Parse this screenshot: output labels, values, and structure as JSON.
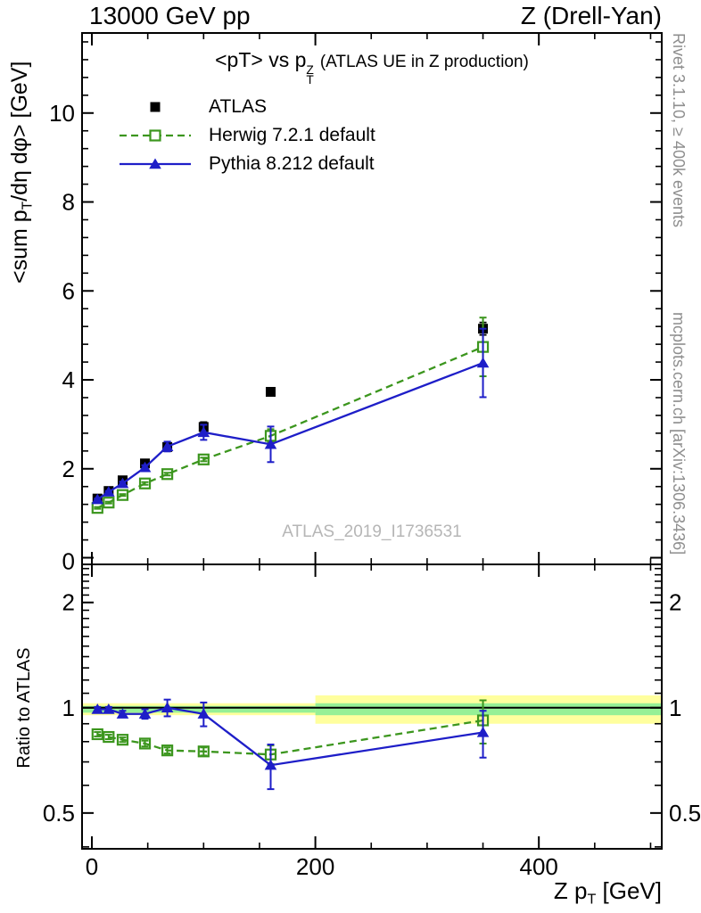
{
  "header": {
    "left": "13000 GeV pp",
    "right": "Z (Drell-Yan)"
  },
  "panel_title": {
    "prefix": "<pT> vs p",
    "sup": "Z",
    "sub": "T",
    "suffix": "(ATLAS UE in Z production)"
  },
  "axes": {
    "y_main": {
      "prefix": "<sum p",
      "sub": "T",
      "suffix": "/dη dφ> [GeV]"
    },
    "y_ratio_label": "Ratio to ATLAS",
    "x": {
      "prefix": "Z p",
      "sub": "T",
      "suffix": " [GeV]"
    }
  },
  "legend": [
    {
      "label": "ATLAS"
    },
    {
      "label": "Herwig 7.2.1 default"
    },
    {
      "label": "Pythia 8.212 default"
    }
  ],
  "side_text": {
    "top": "Rivet 3.1.10, ≥ 400k events",
    "bottom": "mcplots.cern.ch [arXiv:1306.3436]"
  },
  "watermark": "ATLAS_2019_I1736531",
  "colors": {
    "atlas": "#000000",
    "herwig": "#3c961e",
    "pythia": "#1e1ec8",
    "band_yellow": "#ffff9e",
    "band_green": "#96f096",
    "frame": "#000000"
  },
  "chart_data": [
    {
      "type": "line",
      "panel": "main",
      "title": "<pT> vs pT^Z (ATLAS UE in Z production)",
      "xlabel": "Z pT [GeV]",
      "ylabel": "<sum pT/deta dphi> [GeV]",
      "x": [
        5,
        15,
        27.5,
        47.5,
        67.5,
        100,
        160,
        350
      ],
      "xlim": [
        -8.8,
        510
      ],
      "ylim": [
        -0.15,
        11.8
      ],
      "xticks": [
        0,
        200,
        400
      ],
      "x_minor_step": 50,
      "yticks": [
        0,
        2,
        4,
        6,
        8,
        10
      ],
      "y_minor_step": 0.4,
      "series": [
        {
          "name": "ATLAS",
          "marker": "filled-square",
          "line": "none",
          "color_key": "atlas",
          "values": [
            1.33,
            1.5,
            1.74,
            2.12,
            2.49,
            2.94,
            3.73,
            5.15
          ],
          "errors": [
            0.03,
            0.03,
            0.03,
            0.04,
            0.05,
            0.11,
            0.05,
            0.14
          ]
        },
        {
          "name": "Herwig 7.2.1 default",
          "marker": "open-square",
          "line": "dashed",
          "color_key": "herwig",
          "values": [
            1.12,
            1.24,
            1.41,
            1.67,
            1.88,
            2.21,
            2.74,
            4.74
          ],
          "errors": [
            0.02,
            0.02,
            0.02,
            0.03,
            0.03,
            0.04,
            0.15,
            0.66
          ]
        },
        {
          "name": "Pythia 8.212 default",
          "marker": "filled-triangle",
          "line": "solid",
          "color_key": "pythia",
          "values": [
            1.31,
            1.48,
            1.67,
            2.03,
            2.5,
            2.82,
            2.55,
            4.38
          ],
          "errors": [
            0.02,
            0.02,
            0.04,
            0.05,
            0.11,
            0.17,
            0.4,
            0.77
          ]
        }
      ]
    },
    {
      "type": "line",
      "panel": "ratio",
      "ylabel": "Ratio to ATLAS",
      "ylog": true,
      "x": [
        5,
        15,
        27.5,
        47.5,
        67.5,
        100,
        160,
        350
      ],
      "xlim": [
        -8.8,
        510
      ],
      "ylim": [
        0.395,
        2.57
      ],
      "yticks": [
        0.5,
        1,
        2
      ],
      "ref_line": 1,
      "bands": [
        {
          "x0": -8.8,
          "x1": 200,
          "lo": 0.952,
          "hi": 1.03,
          "color_key": "band_yellow"
        },
        {
          "x0": -8.8,
          "x1": 200,
          "lo": 0.968,
          "hi": 1.012,
          "color_key": "band_green"
        },
        {
          "x0": 200,
          "x1": 510,
          "lo": 0.9,
          "hi": 1.085,
          "color_key": "band_yellow"
        },
        {
          "x0": 200,
          "x1": 510,
          "lo": 0.952,
          "hi": 1.03,
          "color_key": "band_green"
        }
      ],
      "series": [
        {
          "name": "Herwig 7.2.1 default",
          "marker": "open-square",
          "line": "dashed",
          "color_key": "herwig",
          "values": [
            0.84,
            0.825,
            0.81,
            0.79,
            0.755,
            0.75,
            0.735,
            0.92
          ],
          "errors": [
            0.012,
            0.012,
            0.012,
            0.015,
            0.015,
            0.02,
            0.045,
            0.13
          ]
        },
        {
          "name": "Pythia 8.212 default",
          "marker": "filled-triangle",
          "line": "solid",
          "color_key": "pythia",
          "values": [
            0.99,
            0.99,
            0.96,
            0.96,
            1.0,
            0.96,
            0.685,
            0.85
          ],
          "errors": [
            0.015,
            0.015,
            0.02,
            0.03,
            0.055,
            0.075,
            0.1,
            0.13
          ]
        }
      ]
    }
  ]
}
